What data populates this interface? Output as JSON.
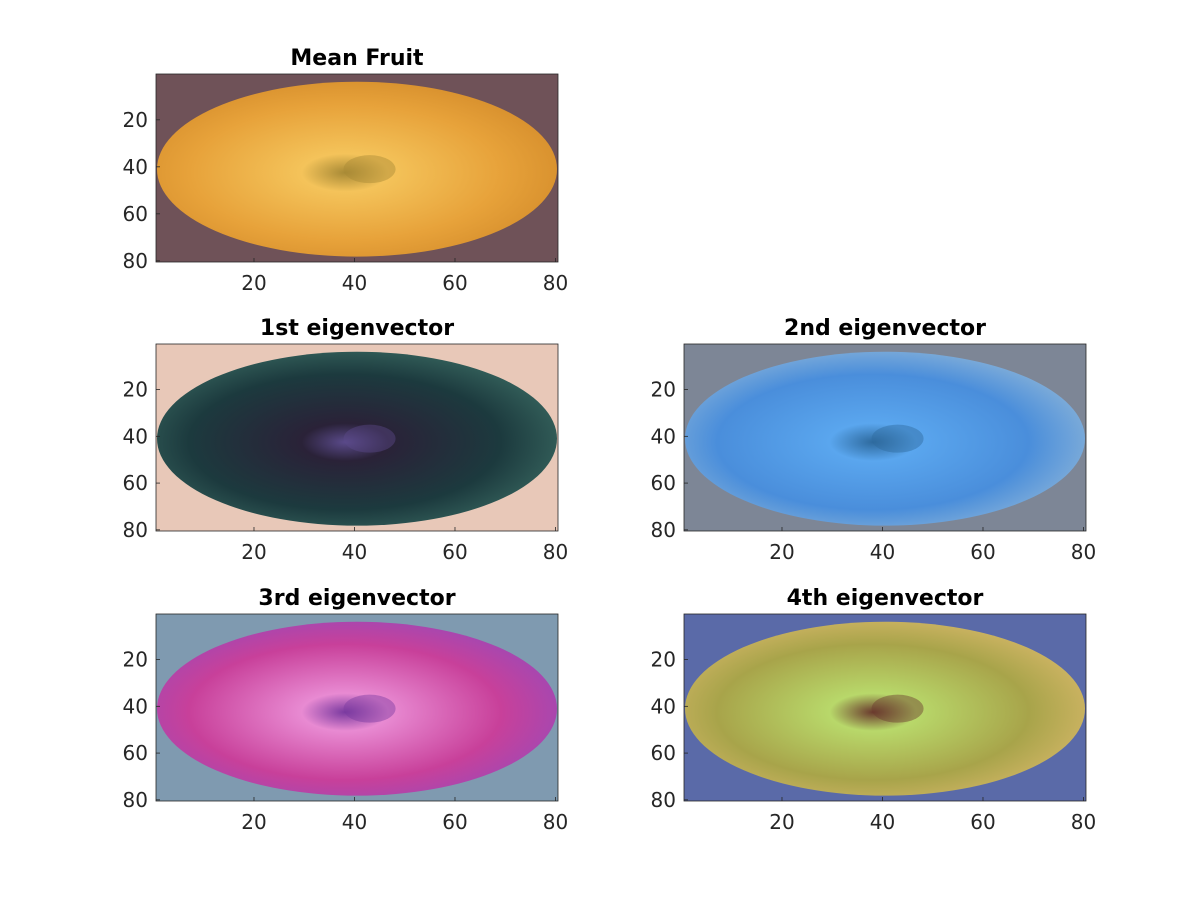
{
  "chart_data": [
    {
      "type": "image",
      "title": "Mean Fruit",
      "x_ticks": [
        20,
        40,
        60,
        80
      ],
      "y_ticks": [
        20,
        40,
        60,
        80
      ],
      "xlim": [
        0.5,
        80.5
      ],
      "ylim": [
        0.5,
        80.5
      ],
      "y_direction": "reverse",
      "colors": {
        "background": "#6f5258",
        "fruit": "#e7a23a",
        "highlight": "#f4c35a",
        "center": "#a88a36",
        "rim": "#d38b2a"
      }
    },
    {
      "type": "image",
      "title": "1st eigenvector",
      "x_ticks": [
        20,
        40,
        60,
        80
      ],
      "y_ticks": [
        20,
        40,
        60,
        80
      ],
      "xlim": [
        0.5,
        80.5
      ],
      "ylim": [
        0.5,
        80.5
      ],
      "y_direction": "reverse",
      "colors": {
        "background": "#e8c8b8",
        "fruit": "#1c3a3e",
        "highlight": "#2a2238",
        "center": "#5a4a8a",
        "rim": "#3a6a62"
      }
    },
    {
      "type": "image",
      "title": "2nd eigenvector",
      "x_ticks": [
        20,
        40,
        60,
        80
      ],
      "y_ticks": [
        20,
        40,
        60,
        80
      ],
      "xlim": [
        0.5,
        80.5
      ],
      "ylim": [
        0.5,
        80.5
      ],
      "y_direction": "reverse",
      "colors": {
        "background": "#7d8696",
        "fruit": "#4a8edb",
        "highlight": "#5aa6ee",
        "center": "#2e6a9e",
        "rim": "#8fb6d8"
      }
    },
    {
      "type": "image",
      "title": "3rd eigenvector",
      "x_ticks": [
        20,
        40,
        60,
        80
      ],
      "y_ticks": [
        20,
        40,
        60,
        80
      ],
      "xlim": [
        0.5,
        80.5
      ],
      "ylim": [
        0.5,
        80.5
      ],
      "y_direction": "reverse",
      "colors": {
        "background": "#7f9ab0",
        "fruit": "#c8409a",
        "highlight": "#e88ad2",
        "center": "#7a3aa0",
        "rim": "#9a4ab8"
      }
    },
    {
      "type": "image",
      "title": "4th eigenvector",
      "x_ticks": [
        20,
        40,
        60,
        80
      ],
      "y_ticks": [
        20,
        40,
        60,
        80
      ],
      "xlim": [
        0.5,
        80.5
      ],
      "ylim": [
        0.5,
        80.5
      ],
      "y_direction": "reverse",
      "colors": {
        "background": "#5a6aa8",
        "fruit": "#a8a44a",
        "highlight": "#b8d86a",
        "center": "#6a3a2e",
        "rim": "#d8b86a"
      }
    }
  ]
}
